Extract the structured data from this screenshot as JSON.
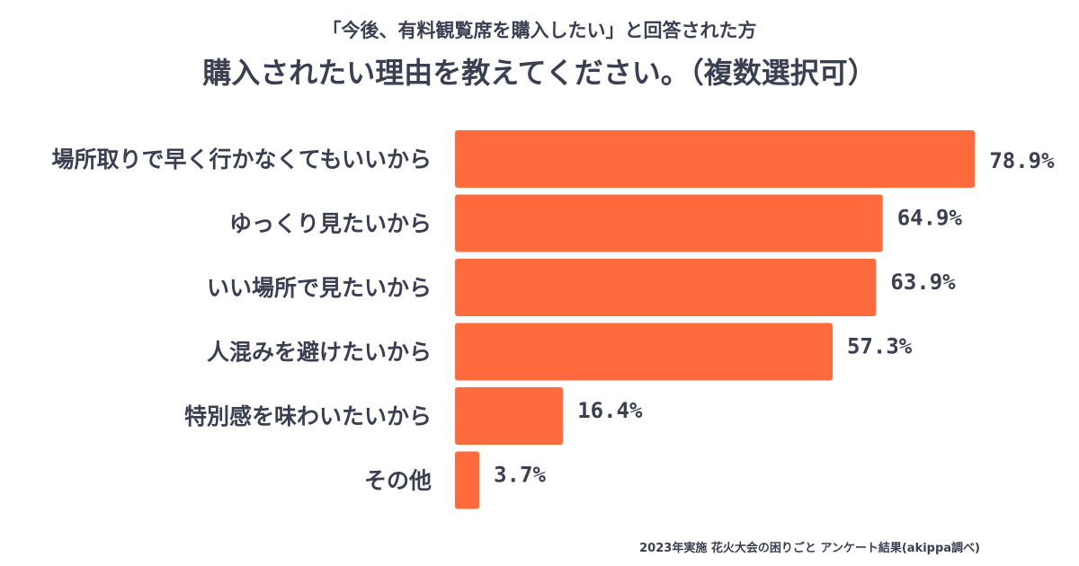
{
  "chart_data": {
    "type": "bar",
    "orientation": "horizontal",
    "subtitle": "「今後、有料観覧席を購入したい」と回答された方",
    "title": "購入されたい理由を教えてください。（複数選択可）",
    "categories": [
      "場所取りで早く行かなくてもいいから",
      "ゆっくり見たいから",
      "いい場所で見たいから",
      "人混みを避けたいから",
      "特別感を味わいたいから",
      "その他"
    ],
    "values": [
      78.9,
      64.9,
      63.9,
      57.3,
      16.4,
      3.7
    ],
    "value_labels": [
      "78.9%",
      "64.9%",
      "63.9%",
      "57.3%",
      "16.4%",
      "3.7%"
    ],
    "unit": "%",
    "xlim": [
      0,
      100
    ],
    "grid": false,
    "legend": "none",
    "bar_color": "#ff6b3d",
    "text_color": "#3a3f52"
  },
  "footnote": "2023年実施 花火大会の困りごと アンケート結果(akippa調べ)"
}
